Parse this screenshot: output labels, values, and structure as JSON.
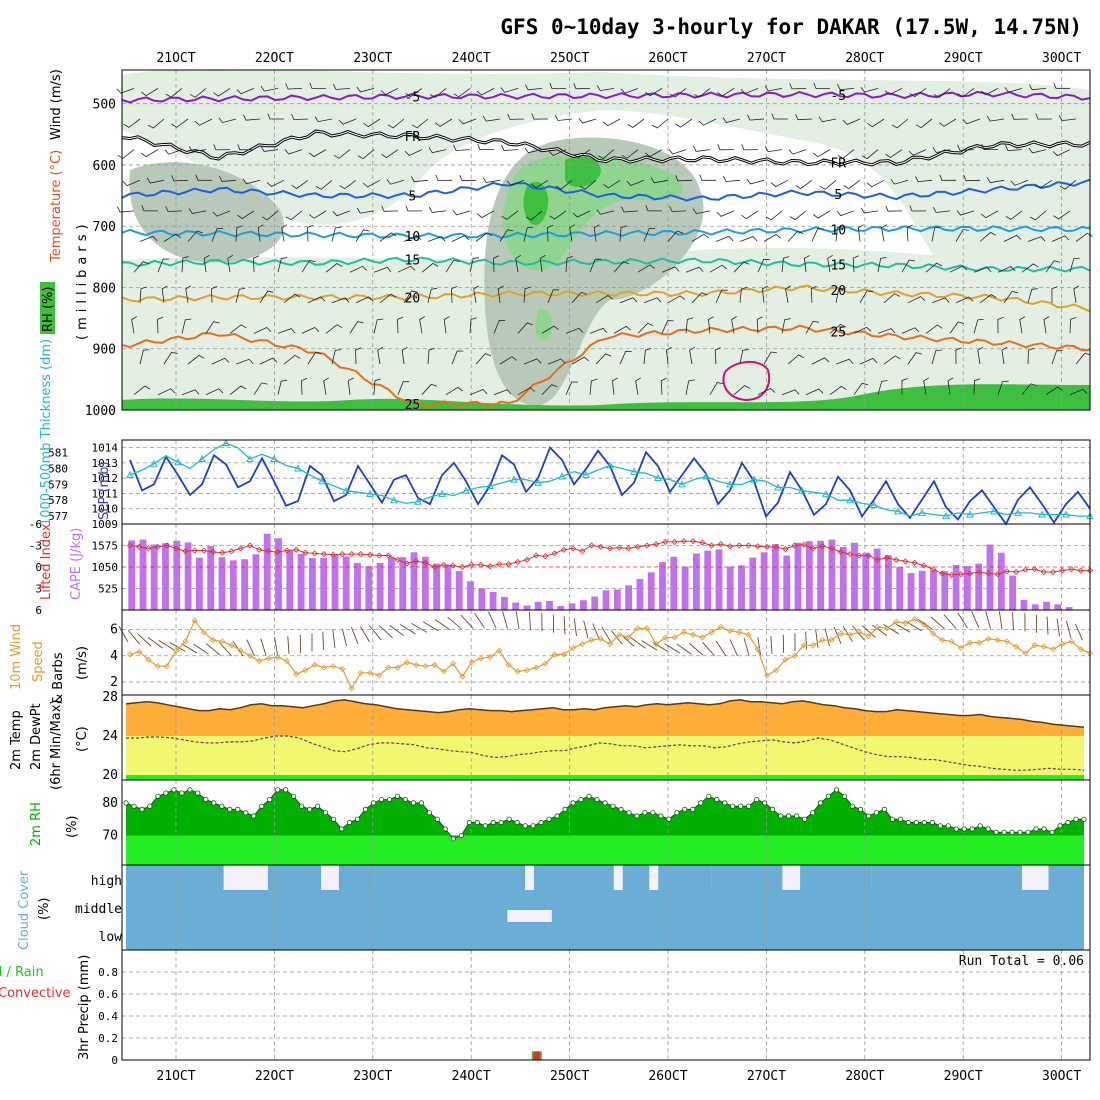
{
  "title": "GFS 0~10day 3-hourly for DAKAR (17.5W, 14.75N)",
  "date_labels": [
    "21OCT",
    "22OCT",
    "23OCT",
    "24OCT",
    "25OCT",
    "26OCT",
    "27OCT",
    "28OCT",
    "29OCT",
    "30OCT"
  ],
  "colors": {
    "rh_green_dark": "#3fbf3f",
    "rh_green_mid": "#8fd58f",
    "rh_grey_dark": "#b9c9b9",
    "rh_grey_light": "#e4efe4",
    "temp_purple": "#8a1cc8",
    "temp_black": "#000000",
    "temp_blue": "#1f5fe0",
    "temp_lightblue": "#1a9fe0",
    "temp_teal": "#1ec09a",
    "temp_gold": "#e0a030",
    "temp_orange": "#e07020",
    "temp_magenta": "#d0107a",
    "slp_line": "#1c3fd0",
    "thickness_line": "#22b8c8",
    "lifted_index": "#e03030",
    "cape_bar": "#c070f0",
    "wind_line": "#e89a30",
    "temp_fill": "#ffae3a",
    "dewpt_fill": "#f0f870",
    "rh2m_dark": "#00b000",
    "rh2m_light": "#22ee22",
    "cloud_blue": "#6aaed6",
    "cloud_bg": "#f4f2f8",
    "precip_total": "#22c022",
    "precip_convective": "#e03030"
  },
  "panel_labels": {
    "upper_wind": "Wind (m/s)",
    "upper_temp": "Temperature (°C)",
    "upper_rh": "RH (%)",
    "upper_pressure": "(millibars)",
    "slp": "SLP (mb)",
    "thickness": "1000-500mb Thickness (dm)",
    "lifted_index": "Lifted Index",
    "cape": "CAPE (J/kg)",
    "wind10_a": "10m Wind",
    "wind10_b": "Speed",
    "wind10_c": "& Barbs",
    "wind10_unit": "(m/s)",
    "temp2m_a": "2m Temp",
    "temp2m_b": "2m DewPt",
    "temp2m_c": "(6hr Min/Max)",
    "temp2m_unit": "(°C)",
    "rh2m": "2m RH",
    "rh2m_unit": "(%)",
    "cloud": "Cloud Cover",
    "cloud_unit": "(%)",
    "precip_a": "Total / Rain",
    "precip_b": "Convective",
    "precip_c": "3hr Precip (mm)",
    "run_total": "Run Total = 0.06"
  },
  "chart_data": [
    {
      "type": "contour",
      "name": "upper-air cross section",
      "y_ticks": [
        500,
        600,
        700,
        800,
        900,
        1000
      ],
      "ylim": [
        1000,
        445
      ],
      "temperature_contours": [
        {
          "label": "-5",
          "level_mb": [
            494,
            492,
            490,
            488,
            488,
            487,
            486,
            485,
            487,
            484,
            490
          ]
        },
        {
          "label": "FR",
          "level_mb": [
            552,
            588,
            548,
            553,
            563,
            592,
            590,
            596,
            596,
            567,
            566
          ]
        },
        {
          "label": "5",
          "level_mb": [
            650,
            640,
            650,
            650,
            630,
            650,
            655,
            645,
            652,
            640,
            628
          ]
        },
        {
          "label": "10",
          "level_mb": [
            710,
            712,
            714,
            716,
            715,
            712,
            710,
            706,
            704,
            704,
            705
          ]
        },
        {
          "label": "15",
          "level_mb": [
            762,
            758,
            760,
            754,
            760,
            758,
            756,
            762,
            764,
            770,
            770
          ]
        },
        {
          "label": "20",
          "level_mb": [
            820,
            816,
            816,
            816,
            810,
            810,
            810,
            800,
            810,
            816,
            835
          ]
        },
        {
          "label": "25",
          "level_mb": [
            895,
            875,
            905,
            990,
            990,
            880,
            870,
            866,
            880,
            890,
            900
          ]
        }
      ]
    },
    {
      "type": "line",
      "name": "SLP and 1000-500mb thickness",
      "slp_ylim": [
        1009,
        1014.5
      ],
      "slp_ticks": [
        1009,
        1010,
        1011,
        1012,
        1013,
        1014
      ],
      "thickness_ticks": [
        577,
        578,
        579,
        580,
        581
      ],
      "slp": [
        1013.2,
        1011.2,
        1011.6,
        1013.4,
        1012.2,
        1010.9,
        1011.6,
        1013.5,
        1012.9,
        1011.4,
        1011.8,
        1013.3,
        1011.8,
        1010.2,
        1010.5,
        1012.8,
        1012.2,
        1010.5,
        1010.9,
        1012.8,
        1011.6,
        1010.4,
        1011.9,
        1012.2,
        1010.7,
        1010.3,
        1012.2,
        1013.0,
        1011.8,
        1010.3,
        1011.5,
        1013.5,
        1012.9,
        1011.1,
        1012.0,
        1014.0,
        1013.2,
        1011.6,
        1012.6,
        1013.8,
        1012.8,
        1010.9,
        1011.7,
        1013.7,
        1012.8,
        1011.1,
        1012.2,
        1013.3,
        1012.3,
        1010.3,
        1011.2,
        1013.0,
        1011.8,
        1009.5,
        1010.4,
        1012.4,
        1011.2,
        1009.6,
        1010.3,
        1012.1,
        1011.2,
        1009.5,
        1010.6,
        1011.8,
        1010.3,
        1009.4,
        1010.6,
        1011.8,
        1010.1,
        1009.3,
        1010.5,
        1011.2,
        1010.1,
        1009.0,
        1010.6,
        1011.4,
        1010.3,
        1009.1,
        1010.3,
        1011.1,
        1010.0
      ],
      "thickness_dm": [
        579.6,
        579.9,
        580.3,
        580.8,
        580.4,
        580.0,
        580.6,
        581.2,
        581.6,
        581.3,
        580.6,
        580.9,
        580.6,
        580.2,
        580.0,
        579.6,
        579.2,
        578.9,
        578.6,
        578.5,
        578.4,
        578.3,
        578.0,
        577.8,
        577.9,
        578.2,
        578.4,
        578.3,
        578.6,
        578.8,
        578.9,
        579.1,
        579.3,
        579.3,
        579.1,
        579.2,
        579.5,
        579.8,
        579.6,
        579.9,
        580.2,
        580.0,
        579.8,
        579.7,
        579.4,
        579.3,
        579.0,
        579.3,
        579.5,
        579.2,
        579.0,
        579.0,
        579.3,
        579.2,
        578.8,
        578.8,
        578.6,
        578.5,
        578.4,
        578.0,
        578.0,
        577.8,
        577.7,
        577.4,
        577.3,
        577.0,
        577.2,
        577.1,
        577.0,
        577.2,
        577.1,
        577.2,
        577.3,
        577.1,
        577.2,
        577.2,
        577.1,
        577.1,
        577.1,
        577.0,
        577.0
      ]
    },
    {
      "type": "bar+line",
      "name": "CAPE and Lifted Index",
      "li_ticks": [
        -6,
        -3,
        0,
        3,
        6
      ],
      "cape_ticks": [
        525,
        1050,
        1575
      ],
      "cape": [
        1700,
        1720,
        1600,
        1630,
        1690,
        1650,
        1280,
        1560,
        1290,
        1210,
        1240,
        1360,
        1860,
        1750,
        1450,
        1370,
        1270,
        1270,
        1350,
        1310,
        1150,
        1070,
        1150,
        1290,
        1290,
        1410,
        1300,
        1130,
        1090,
        950,
        700,
        530,
        440,
        320,
        180,
        110,
        200,
        220,
        100,
        160,
        240,
        330,
        480,
        500,
        600,
        760,
        920,
        1170,
        1300,
        1060,
        1380,
        1450,
        1480,
        1060,
        1090,
        1280,
        1410,
        1610,
        1330,
        1640,
        1680,
        1690,
        1720,
        1540,
        1640,
        1400,
        1500,
        1340,
        1050,
        900,
        960,
        970,
        950,
        1100,
        1070,
        1130,
        1600,
        1400,
        840,
        250,
        140,
        200,
        140,
        70,
        0
      ],
      "lifted_index": [
        -3.0,
        -2.8,
        -2.6,
        -2.8,
        -3.0,
        -2.6,
        -2.2,
        -2.3,
        -2.3,
        -2.1,
        -2.0,
        -2.2,
        -2.6,
        -3.0,
        -2.4,
        -2.2,
        -2.1,
        -2.3,
        -2.4,
        -2.0,
        -1.9,
        -1.8,
        -1.7,
        -1.8,
        -1.8,
        -1.8,
        -1.7,
        -1.6,
        -1.6,
        -1.0,
        -0.5,
        -0.8,
        -0.6,
        0.0,
        -0.3,
        -0.2,
        0.0,
        -0.3,
        -0.3,
        -0.1,
        -0.4,
        -0.4,
        -0.7,
        -1.0,
        -1.6,
        -1.5,
        -1.9,
        -2.4,
        -2.6,
        -2.2,
        -3.0,
        -2.8,
        -2.6,
        -2.7,
        -2.6,
        -2.8,
        -3.0,
        -3.2,
        -3.5,
        -3.5,
        -3.6,
        -3.6,
        -3.4,
        -3.0,
        -3.2,
        -2.9,
        -3.0,
        -3.0,
        -2.9,
        -2.8,
        -2.8,
        -2.5,
        -3.0,
        -3.1,
        -2.6,
        -2.9,
        -2.6,
        -2.1,
        -1.8,
        -1.6,
        -1.6,
        -1.0,
        -1.3,
        -1.0,
        -0.8,
        -0.6,
        -0.2,
        0.3,
        0.9,
        1.1,
        1.0,
        0.9,
        0.7,
        0.9,
        1.0,
        0.6,
        0.7,
        0.4,
        0.3,
        0.7,
        0.7,
        0.5,
        0.3,
        0.5,
        0.5
      ]
    },
    {
      "type": "line",
      "name": "10m wind speed",
      "ylim": [
        1,
        7.5
      ],
      "y_ticks": [
        2,
        4,
        6
      ],
      "values": [
        4.1,
        4.3,
        3.7,
        3.2,
        3.2,
        4.4,
        5.1,
        6.7,
        5.8,
        5.2,
        5.1,
        4.8,
        4.4,
        4.0,
        3.6,
        3.8,
        3.9,
        3.6,
        2.6,
        2.9,
        3.3,
        3.1,
        3.2,
        3.0,
        1.5,
        2.7,
        2.7,
        2.5,
        3.1,
        3.1,
        3.5,
        3.3,
        3.2,
        3.3,
        2.8,
        3.4,
        2.4,
        3.5,
        3.8,
        3.9,
        4.4,
        3.3,
        2.8,
        2.9,
        3.1,
        3.4,
        4.1,
        4.1,
        4.6,
        4.9,
        5.2,
        5.3,
        4.9,
        5.6,
        5.4,
        6.1,
        6.1,
        4.9,
        5.4,
        5.4,
        5.8,
        5.6,
        5.4,
        5.8,
        6.2,
        5.9,
        5.8,
        5.6,
        4.5,
        2.5,
        2.9,
        3.7,
        4.0,
        4.8,
        4.8,
        5.2,
        5.2,
        5.7,
        5.6,
        5.8,
        5.5,
        6.2,
        6.1,
        6.6,
        6.5,
        6.8,
        6.4,
        5.7,
        5.2,
        5.1,
        4.6,
        5.0,
        5.0,
        5.3,
        5.2,
        5.1,
        4.7,
        4.2,
        4.8,
        4.7,
        4.5,
        4.9,
        5.1,
        4.5,
        4.2
      ]
    },
    {
      "type": "area",
      "name": "2m temperature and dew point",
      "ylim": [
        19.5,
        28.2
      ],
      "y_ticks": [
        20,
        24,
        28
      ],
      "temperature": [
        27.3,
        27.4,
        27.5,
        27.4,
        27.2,
        27.0,
        26.8,
        26.6,
        26.6,
        26.8,
        26.7,
        26.9,
        27.2,
        27.3,
        27.1,
        27.1,
        27.0,
        26.9,
        27.1,
        27.3,
        27.6,
        27.7,
        27.5,
        27.3,
        27.2,
        27.0,
        26.8,
        26.7,
        26.6,
        26.5,
        26.4,
        26.5,
        26.7,
        26.8,
        26.7,
        26.6,
        26.6,
        26.5,
        26.6,
        26.7,
        26.8,
        26.9,
        26.7,
        26.7,
        26.8,
        26.7,
        26.9,
        27.0,
        27.1,
        27.0,
        27.2,
        27.3,
        27.2,
        27.3,
        27.4,
        27.3,
        27.2,
        27.3,
        27.6,
        27.7,
        27.5,
        27.5,
        27.4,
        27.3,
        27.5,
        27.6,
        27.4,
        27.2,
        27.1,
        26.9,
        26.8,
        26.6,
        26.5,
        26.5,
        26.7,
        26.6,
        26.5,
        26.4,
        26.3,
        26.2,
        26.1,
        26.1,
        26.2,
        26.0,
        25.9,
        25.8,
        25.7,
        25.5,
        25.4,
        25.2,
        25.1,
        25.0,
        24.9
      ],
      "dew_point": [
        23.8,
        23.8,
        23.9,
        23.9,
        23.8,
        23.6,
        23.4,
        23.3,
        23.3,
        23.4,
        23.4,
        23.5,
        23.8,
        24.0,
        24.0,
        23.8,
        23.3,
        22.9,
        22.5,
        22.4,
        22.7,
        23.1,
        23.3,
        23.3,
        23.2,
        23.1,
        22.8,
        22.7,
        22.5,
        22.4,
        22.3,
        22.0,
        21.8,
        21.9,
        22.1,
        22.2,
        22.4,
        22.5,
        22.5,
        22.8,
        23.0,
        23.3,
        23.2,
        23.0,
        23.0,
        22.8,
        22.9,
        23.0,
        23.1,
        23.0,
        23.0,
        22.8,
        22.9,
        23.2,
        23.4,
        23.5,
        23.6,
        23.4,
        23.3,
        23.5,
        23.8,
        23.6,
        23.2,
        22.8,
        22.4,
        22.1,
        21.9,
        21.9,
        21.8,
        21.6,
        21.6,
        21.4,
        21.2,
        21.0,
        20.9,
        20.7,
        20.6,
        20.5,
        20.5,
        20.6,
        20.7,
        20.6,
        20.6,
        20.5
      ]
    },
    {
      "type": "area",
      "name": "2m relative humidity",
      "ylim": [
        61,
        87
      ],
      "y_ticks": [
        70,
        80
      ],
      "values": [
        80,
        79,
        78,
        79,
        82,
        83,
        84,
        83,
        84,
        83,
        81,
        80,
        79,
        78,
        78,
        77,
        76,
        79,
        81,
        84,
        84,
        82,
        79,
        78,
        79,
        77,
        75,
        72,
        74,
        75,
        78,
        80,
        81,
        81,
        82,
        81,
        80,
        80,
        77,
        75,
        72,
        69,
        70,
        74,
        74,
        73,
        74,
        74,
        75,
        74,
        73,
        73,
        74,
        75,
        76,
        78,
        80,
        81,
        82,
        81,
        80,
        79,
        78,
        77,
        76,
        77,
        77,
        76,
        75,
        77,
        78,
        78,
        80,
        82,
        81,
        80,
        79,
        79,
        79,
        81,
        80,
        78,
        76,
        76,
        76,
        75,
        77,
        80,
        82,
        84,
        82,
        79,
        78,
        76,
        77,
        78,
        75,
        75,
        74,
        74,
        74,
        74,
        73,
        73,
        72,
        72,
        72,
        73,
        72,
        71,
        71,
        71,
        71,
        71,
        72,
        72,
        71,
        73,
        74,
        75,
        75
      ]
    },
    {
      "type": "bar",
      "name": "cloud cover",
      "layers": [
        "high",
        "middle",
        "low"
      ],
      "low": 100,
      "high_bars": [
        [
          0,
          8
        ],
        [
          8,
          3
        ],
        [
          16,
          6
        ],
        [
          24,
          4
        ],
        [
          28,
          8
        ],
        [
          36,
          9
        ],
        [
          46,
          9
        ],
        [
          56,
          3
        ],
        [
          60,
          6
        ],
        [
          66,
          5
        ],
        [
          68,
          6
        ],
        [
          76,
          8
        ],
        [
          84,
          9
        ],
        [
          90,
          9
        ],
        [
          96,
          5
        ],
        [
          104,
          4
        ]
      ],
      "middle_gap": [
        [
          43,
          48
        ]
      ]
    },
    {
      "type": "bar",
      "name": "3hr precipitation",
      "ylim": [
        0,
        1
      ],
      "y_ticks": [
        0,
        0.2,
        0.4,
        0.6,
        0.8
      ],
      "bars": [
        {
          "time_index": 34,
          "total": 0.06,
          "convective": 0.06
        }
      ]
    }
  ]
}
